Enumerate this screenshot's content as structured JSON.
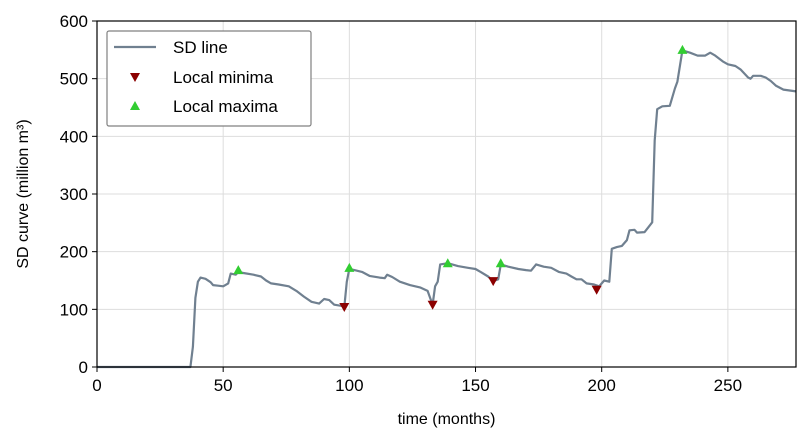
{
  "chart_data": {
    "type": "line",
    "xlabel": "time (months)",
    "ylabel": "SD curve (million m³)",
    "xlim": [
      0,
      277
    ],
    "ylim": [
      0,
      600
    ],
    "x_ticks": [
      0,
      50,
      100,
      150,
      200,
      250
    ],
    "y_ticks": [
      0,
      100,
      200,
      300,
      400,
      500,
      600
    ],
    "grid": true,
    "legend_position": "top-left",
    "colors": {
      "line": "#708090",
      "minima": "#8b0000",
      "maxima": "#32cd32"
    },
    "series": [
      {
        "name": "SD line",
        "kind": "line",
        "points": [
          [
            0,
            0
          ],
          [
            37,
            0
          ],
          [
            38,
            35
          ],
          [
            39,
            120
          ],
          [
            40,
            148
          ],
          [
            41,
            155
          ],
          [
            43,
            153
          ],
          [
            45,
            147
          ],
          [
            46,
            142
          ],
          [
            48,
            141
          ],
          [
            50,
            140
          ],
          [
            52,
            145
          ],
          [
            53,
            162
          ],
          [
            55,
            160
          ],
          [
            56,
            165
          ],
          [
            58,
            163
          ],
          [
            62,
            160
          ],
          [
            65,
            157
          ],
          [
            67,
            150
          ],
          [
            69,
            145
          ],
          [
            72,
            143
          ],
          [
            76,
            140
          ],
          [
            79,
            132
          ],
          [
            82,
            122
          ],
          [
            85,
            113
          ],
          [
            88,
            110
          ],
          [
            90,
            118
          ],
          [
            92,
            116
          ],
          [
            94,
            108
          ],
          [
            97,
            106
          ],
          [
            98,
            104
          ],
          [
            99,
            148
          ],
          [
            100,
            170
          ],
          [
            102,
            168
          ],
          [
            105,
            165
          ],
          [
            108,
            158
          ],
          [
            112,
            155
          ],
          [
            114,
            154
          ],
          [
            115,
            160
          ],
          [
            117,
            156
          ],
          [
            120,
            148
          ],
          [
            124,
            142
          ],
          [
            128,
            138
          ],
          [
            131,
            132
          ],
          [
            133,
            108
          ],
          [
            134,
            140
          ],
          [
            135,
            148
          ],
          [
            136,
            178
          ],
          [
            139,
            180
          ],
          [
            143,
            175
          ],
          [
            147,
            172
          ],
          [
            150,
            170
          ],
          [
            152,
            165
          ],
          [
            155,
            157
          ],
          [
            157,
            149
          ],
          [
            159,
            152
          ],
          [
            160,
            178
          ],
          [
            163,
            174
          ],
          [
            167,
            170
          ],
          [
            170,
            168
          ],
          [
            172,
            167
          ],
          [
            174,
            178
          ],
          [
            177,
            174
          ],
          [
            180,
            172
          ],
          [
            183,
            165
          ],
          [
            186,
            162
          ],
          [
            188,
            157
          ],
          [
            190,
            152
          ],
          [
            192,
            152
          ],
          [
            194,
            145
          ],
          [
            197,
            143
          ],
          [
            199,
            140
          ],
          [
            200,
            145
          ],
          [
            201,
            150
          ],
          [
            203,
            148
          ],
          [
            204,
            205
          ],
          [
            206,
            208
          ],
          [
            208,
            210
          ],
          [
            210,
            220
          ],
          [
            211,
            237
          ],
          [
            213,
            238
          ],
          [
            214,
            233
          ],
          [
            217,
            234
          ],
          [
            219,
            245
          ],
          [
            220,
            251
          ],
          [
            221,
            393
          ],
          [
            222,
            447
          ],
          [
            224,
            452
          ],
          [
            227,
            453
          ],
          [
            229,
            483
          ],
          [
            230,
            495
          ],
          [
            232,
            549
          ],
          [
            235,
            545
          ],
          [
            238,
            540
          ],
          [
            241,
            540
          ],
          [
            243,
            545
          ],
          [
            245,
            540
          ],
          [
            248,
            530
          ],
          [
            250,
            525
          ],
          [
            253,
            522
          ],
          [
            255,
            516
          ],
          [
            258,
            502
          ],
          [
            259,
            500
          ],
          [
            260,
            505
          ],
          [
            263,
            505
          ],
          [
            265,
            502
          ],
          [
            267,
            496
          ],
          [
            269,
            488
          ],
          [
            272,
            481
          ],
          [
            277,
            478
          ]
        ]
      },
      {
        "name": "Local minima",
        "kind": "marker",
        "points": [
          [
            98,
            104
          ],
          [
            133,
            108
          ],
          [
            157,
            149
          ],
          [
            198,
            134
          ]
        ]
      },
      {
        "name": "Local maxima",
        "kind": "marker",
        "points": [
          [
            56,
            168
          ],
          [
            100,
            172
          ],
          [
            139,
            180
          ],
          [
            160,
            180
          ],
          [
            232,
            550
          ]
        ]
      }
    ]
  }
}
